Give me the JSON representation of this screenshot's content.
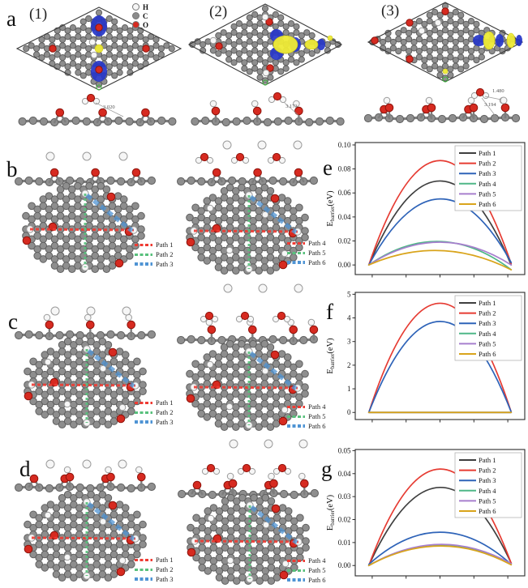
{
  "labels": {
    "a": "a",
    "b": "b",
    "c": "c",
    "d": "d",
    "e": "e",
    "f": "f",
    "g": "g"
  },
  "panel_a": {
    "sub1": "(1)",
    "sub2": "(2)",
    "sub3": "(3)",
    "atom_legend": [
      {
        "symbol": "H",
        "color": "#f6f6f6"
      },
      {
        "symbol": "C",
        "color": "#8b8b8b"
      },
      {
        "symbol": "O",
        "color": "#d62a20"
      }
    ],
    "distances": {
      "d1": "3.020",
      "d2": "3.173",
      "d3a": "1.480",
      "d3b": "3.194"
    }
  },
  "mol_legends": {
    "left": [
      {
        "label": "Path 1",
        "color": "#ef3b33"
      },
      {
        "label": "Path 2",
        "color": "#58c07c"
      },
      {
        "label": "Path 3",
        "color": "#4f94d4"
      }
    ],
    "right": [
      {
        "label": "Path 4",
        "color": "#ef3b33"
      },
      {
        "label": "Path 5",
        "color": "#58c07c"
      },
      {
        "label": "Path 6",
        "color": "#4f94d4"
      }
    ]
  },
  "chart_data": [
    {
      "id": "chart-e",
      "panel": "e",
      "type": "line",
      "title": "",
      "xlabel": "",
      "ylabel": "E_barrier(eV)",
      "ylabel_parts": {
        "main": "E",
        "sub": "barrier",
        "unit": "(eV)"
      },
      "ylim": [
        -0.008,
        0.102
      ],
      "yticks": [
        "0.00",
        "0.02",
        "0.04",
        "0.06",
        "0.08",
        "0.10"
      ],
      "ytick_values": [
        0,
        0.02,
        0.04,
        0.06,
        0.08,
        0.1
      ],
      "xticks_labeled": false,
      "legend_position": "top-right",
      "grid": false,
      "x_samples": [
        0,
        0.5,
        1
      ],
      "series": [
        {
          "name": "Path 1",
          "color": "#3f3f3f",
          "y": [
            0,
            0.07,
            0.0
          ]
        },
        {
          "name": "Path 2",
          "color": "#e63b32",
          "y": [
            0,
            0.087,
            0.001
          ]
        },
        {
          "name": "Path 3",
          "color": "#2e63b8",
          "y": [
            0,
            0.055,
            0.002
          ]
        },
        {
          "name": "Path 4",
          "color": "#4fb787",
          "y": [
            0,
            0.0195,
            -0.004
          ]
        },
        {
          "name": "Path 5",
          "color": "#a77fce",
          "y": [
            0,
            0.019,
            0.0
          ]
        },
        {
          "name": "Path 6",
          "color": "#d9a41b",
          "y": [
            0,
            0.012,
            -0.004
          ]
        }
      ]
    },
    {
      "id": "chart-f",
      "panel": "f",
      "type": "line",
      "title": "",
      "xlabel": "",
      "ylabel": "E_barrier(eV)",
      "ylabel_parts": {
        "main": "E",
        "sub": "barrier",
        "unit": "(eV)"
      },
      "ylim": [
        -0.3,
        5.08
      ],
      "yticks": [
        "0",
        "1",
        "2",
        "3",
        "4",
        "5"
      ],
      "ytick_values": [
        0,
        1,
        2,
        3,
        4,
        5
      ],
      "xticks_labeled": false,
      "legend_position": "top-right",
      "grid": false,
      "x_samples": [
        0,
        0.5,
        1
      ],
      "series": [
        {
          "name": "Path 1",
          "color": "#3f3f3f",
          "y": [
            0,
            0.0,
            0.0
          ]
        },
        {
          "name": "Path 2",
          "color": "#e63b32",
          "y": [
            0,
            4.62,
            0.02
          ]
        },
        {
          "name": "Path 3",
          "color": "#2e63b8",
          "y": [
            0,
            3.85,
            0.02
          ]
        },
        {
          "name": "Path 4",
          "color": "#4fb787",
          "y": [
            0,
            0.0,
            0.0
          ]
        },
        {
          "name": "Path 5",
          "color": "#a77fce",
          "y": [
            0,
            0.0,
            0.0
          ]
        },
        {
          "name": "Path 6",
          "color": "#d9a41b",
          "y": [
            0,
            0.0,
            0.0
          ]
        }
      ]
    },
    {
      "id": "chart-g",
      "panel": "g",
      "type": "line",
      "title": "",
      "xlabel": "",
      "ylabel": "E_barrier(eV)",
      "ylabel_parts": {
        "main": "E",
        "sub": "barrier",
        "unit": "(eV)"
      },
      "ylim": [
        -0.0045,
        0.0505
      ],
      "yticks": [
        "0.00",
        "0.01",
        "0.02",
        "0.03",
        "0.04",
        "0.05"
      ],
      "ytick_values": [
        0,
        0.01,
        0.02,
        0.03,
        0.04,
        0.05
      ],
      "xticks_labeled": false,
      "legend_position": "top-right",
      "grid": false,
      "x_samples": [
        0,
        0.5,
        1
      ],
      "series": [
        {
          "name": "Path 1",
          "color": "#3f3f3f",
          "y": [
            0,
            0.034,
            0.001
          ]
        },
        {
          "name": "Path 2",
          "color": "#e63b32",
          "y": [
            0,
            0.042,
            0.001
          ]
        },
        {
          "name": "Path 3",
          "color": "#2e63b8",
          "y": [
            0.0005,
            0.0145,
            0.0005
          ]
        },
        {
          "name": "Path 4",
          "color": "#4fb787",
          "y": [
            0,
            0.009,
            0.0005
          ]
        },
        {
          "name": "Path 5",
          "color": "#a77fce",
          "y": [
            0,
            0.0092,
            0.0008
          ]
        },
        {
          "name": "Path 6",
          "color": "#d9a41b",
          "y": [
            0,
            0.0085,
            0.0003
          ]
        }
      ]
    }
  ]
}
